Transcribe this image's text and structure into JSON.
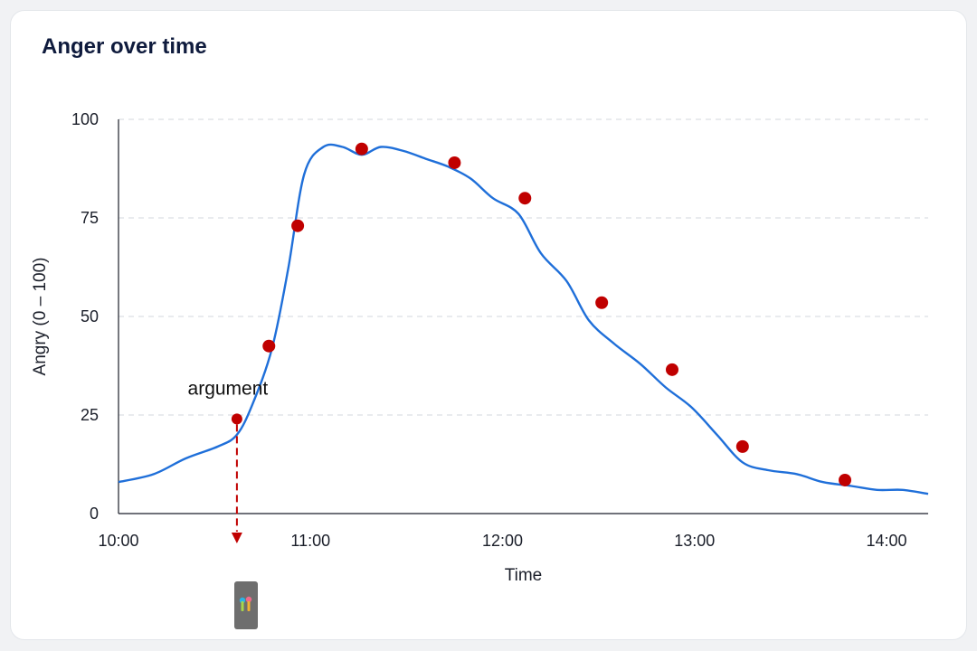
{
  "card": {
    "title": "Anger over time"
  },
  "chart_data": {
    "type": "line",
    "title": "Anger over time",
    "xlabel": "Time",
    "ylabel": "Angry (0 – 100)",
    "xlim": [
      "10:00",
      "14:13"
    ],
    "ylim": [
      0,
      100
    ],
    "x_ticks": [
      "10:00",
      "11:00",
      "12:00",
      "13:00",
      "14:00"
    ],
    "y_ticks": [
      0,
      25,
      50,
      75,
      100
    ],
    "grid": "horizontal dashed",
    "curve": {
      "color": "#1f6fd9",
      "x": [
        "10:00",
        "10:11",
        "10:21",
        "10:31",
        "10:37",
        "10:42",
        "10:48",
        "10:53",
        "10:58",
        "11:04",
        "11:10",
        "11:16",
        "11:22",
        "11:29",
        "11:36",
        "11:43",
        "11:50",
        "11:57",
        "12:05",
        "12:12",
        "12:20",
        "12:27",
        "12:35",
        "12:43",
        "12:51",
        "12:59",
        "13:07",
        "13:15",
        "13:23",
        "13:32",
        "13:40",
        "13:49",
        "13:57",
        "14:05",
        "14:13"
      ],
      "y": [
        8,
        10,
        14,
        17,
        20,
        28,
        42,
        62,
        86,
        93,
        93,
        91,
        93,
        92,
        90,
        88,
        85,
        80,
        76,
        66,
        59,
        49,
        43,
        38,
        32,
        27,
        20,
        13,
        11,
        10,
        8,
        7,
        6,
        6,
        5
      ]
    },
    "markers": {
      "color": "#c00000",
      "x": [
        "10:37",
        "10:47",
        "10:56",
        "11:16",
        "11:45",
        "12:07",
        "12:31",
        "12:53",
        "13:15",
        "13:47"
      ],
      "y": [
        24,
        42.5,
        73,
        92.5,
        89,
        80,
        53.5,
        36.5,
        17,
        8.5
      ]
    },
    "annotation": {
      "label": "argument",
      "x": "10:37",
      "y": 24,
      "color": "#c00000"
    }
  },
  "colors": {
    "grid": "#dcdfe4",
    "axis": "#1b1f2a",
    "device_body": "#6e6e6e",
    "device_logo": [
      "#2bb3e6",
      "#f06a8b",
      "#a6d64b",
      "#f2b233"
    ]
  }
}
